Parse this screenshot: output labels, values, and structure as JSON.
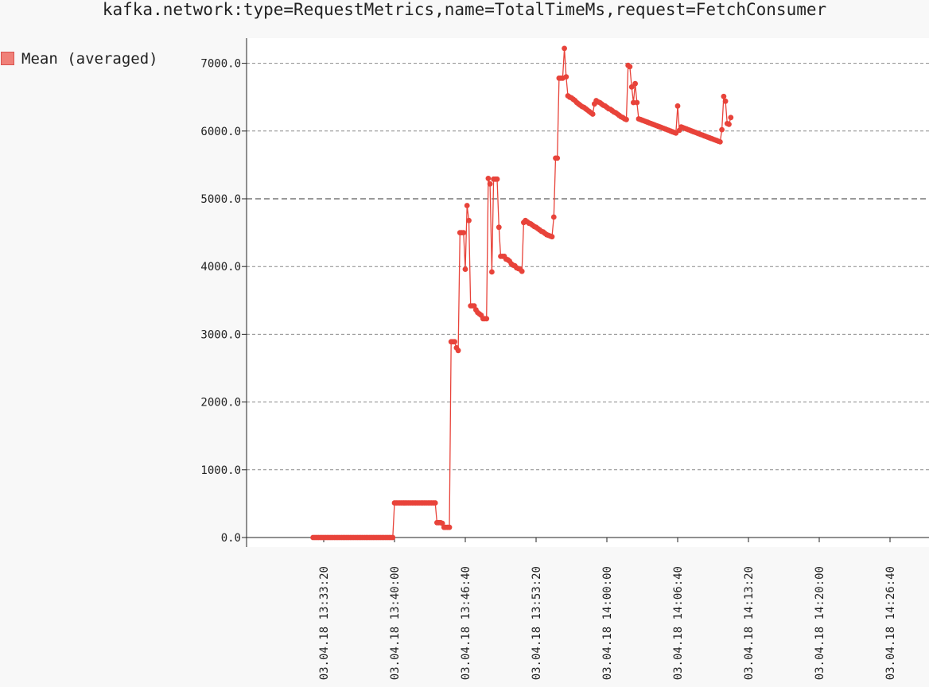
{
  "chart_data": {
    "type": "line",
    "title": "kafka.network:type=RequestMetrics,name=TotalTimeMs,request=FetchConsumer",
    "xlabel": "",
    "ylabel": "",
    "ylim": [
      0,
      7000
    ],
    "yticks": [
      "0.0",
      "1000.0",
      "2000.0",
      "3000.0",
      "4000.0",
      "5000.0",
      "6000.0",
      "7000.0"
    ],
    "xticks": [
      "03.04.18 13:33:20",
      "03.04.18 13:40:00",
      "03.04.18 13:46:40",
      "03.04.18 13:53:20",
      "03.04.18 14:00:00",
      "03.04.18 14:06:40",
      "03.04.18 14:13:20",
      "03.04.18 14:20:00",
      "03.04.18 14:26:40"
    ],
    "grid": true,
    "legend_position": "top-left",
    "series": [
      {
        "name": "Mean (averaged)",
        "color": "#e8433a",
        "points": [
          [
            "13:32:20",
            0
          ],
          [
            "13:32:30",
            0
          ],
          [
            "13:32:40",
            0
          ],
          [
            "13:32:50",
            0
          ],
          [
            "13:33:00",
            0
          ],
          [
            "13:33:10",
            0
          ],
          [
            "13:33:20",
            0
          ],
          [
            "13:33:30",
            0
          ],
          [
            "13:33:40",
            0
          ],
          [
            "13:33:50",
            0
          ],
          [
            "13:34:00",
            0
          ],
          [
            "13:34:10",
            0
          ],
          [
            "13:34:20",
            0
          ],
          [
            "13:34:30",
            0
          ],
          [
            "13:34:40",
            0
          ],
          [
            "13:34:50",
            0
          ],
          [
            "13:35:00",
            0
          ],
          [
            "13:35:10",
            0
          ],
          [
            "13:35:20",
            0
          ],
          [
            "13:35:30",
            0
          ],
          [
            "13:35:40",
            0
          ],
          [
            "13:35:50",
            0
          ],
          [
            "13:36:00",
            0
          ],
          [
            "13:36:10",
            0
          ],
          [
            "13:36:20",
            0
          ],
          [
            "13:36:30",
            0
          ],
          [
            "13:36:40",
            0
          ],
          [
            "13:36:50",
            0
          ],
          [
            "13:37:00",
            0
          ],
          [
            "13:37:10",
            0
          ],
          [
            "13:37:20",
            0
          ],
          [
            "13:37:30",
            0
          ],
          [
            "13:37:40",
            0
          ],
          [
            "13:37:50",
            0
          ],
          [
            "13:38:00",
            0
          ],
          [
            "13:38:10",
            0
          ],
          [
            "13:38:20",
            0
          ],
          [
            "13:38:30",
            0
          ],
          [
            "13:38:40",
            0
          ],
          [
            "13:38:50",
            0
          ],
          [
            "13:39:00",
            0
          ],
          [
            "13:39:10",
            0
          ],
          [
            "13:39:20",
            0
          ],
          [
            "13:39:30",
            0
          ],
          [
            "13:39:40",
            0
          ],
          [
            "13:39:50",
            0
          ],
          [
            "13:40:00",
            510
          ],
          [
            "13:40:10",
            510
          ],
          [
            "13:40:20",
            510
          ],
          [
            "13:40:30",
            510
          ],
          [
            "13:40:40",
            510
          ],
          [
            "13:40:50",
            510
          ],
          [
            "13:41:00",
            510
          ],
          [
            "13:41:10",
            510
          ],
          [
            "13:41:20",
            510
          ],
          [
            "13:41:30",
            510
          ],
          [
            "13:41:40",
            510
          ],
          [
            "13:41:50",
            510
          ],
          [
            "13:42:00",
            510
          ],
          [
            "13:42:10",
            510
          ],
          [
            "13:42:20",
            510
          ],
          [
            "13:42:30",
            510
          ],
          [
            "13:42:40",
            510
          ],
          [
            "13:42:50",
            510
          ],
          [
            "13:43:00",
            510
          ],
          [
            "13:43:10",
            510
          ],
          [
            "13:43:20",
            510
          ],
          [
            "13:43:30",
            510
          ],
          [
            "13:43:40",
            510
          ],
          [
            "13:43:50",
            510
          ],
          [
            "13:44:00",
            220
          ],
          [
            "13:44:10",
            220
          ],
          [
            "13:44:20",
            220
          ],
          [
            "13:44:30",
            210
          ],
          [
            "13:44:40",
            150
          ],
          [
            "13:44:50",
            150
          ],
          [
            "13:45:00",
            150
          ],
          [
            "13:45:10",
            150
          ],
          [
            "13:45:20",
            2890
          ],
          [
            "13:45:30",
            2890
          ],
          [
            "13:45:40",
            2890
          ],
          [
            "13:45:50",
            2800
          ],
          [
            "13:46:00",
            2760
          ],
          [
            "13:46:10",
            4500
          ],
          [
            "13:46:20",
            4500
          ],
          [
            "13:46:30",
            4500
          ],
          [
            "13:46:40",
            3960
          ],
          [
            "13:46:50",
            4900
          ],
          [
            "13:47:00",
            4680
          ],
          [
            "13:47:10",
            3420
          ],
          [
            "13:47:20",
            3420
          ],
          [
            "13:47:30",
            3420
          ],
          [
            "13:47:40",
            3360
          ],
          [
            "13:47:50",
            3320
          ],
          [
            "13:48:00",
            3300
          ],
          [
            "13:48:10",
            3280
          ],
          [
            "13:48:20",
            3230
          ],
          [
            "13:48:30",
            3230
          ],
          [
            "13:48:40",
            3230
          ],
          [
            "13:48:50",
            5300
          ],
          [
            "13:49:00",
            5220
          ],
          [
            "13:49:10",
            3920
          ],
          [
            "13:49:20",
            5290
          ],
          [
            "13:49:30",
            5290
          ],
          [
            "13:49:40",
            5290
          ],
          [
            "13:49:50",
            4580
          ],
          [
            "13:50:00",
            4150
          ],
          [
            "13:50:10",
            4150
          ],
          [
            "13:50:20",
            4150
          ],
          [
            "13:50:30",
            4110
          ],
          [
            "13:50:40",
            4100
          ],
          [
            "13:50:50",
            4080
          ],
          [
            "13:51:00",
            4040
          ],
          [
            "13:51:10",
            4020
          ],
          [
            "13:51:20",
            4010
          ],
          [
            "13:51:30",
            3980
          ],
          [
            "13:51:40",
            3970
          ],
          [
            "13:51:50",
            3960
          ],
          [
            "13:52:00",
            3930
          ],
          [
            "13:52:10",
            4650
          ],
          [
            "13:52:20",
            4680
          ],
          [
            "13:52:30",
            4660
          ],
          [
            "13:52:40",
            4640
          ],
          [
            "13:52:50",
            4630
          ],
          [
            "13:53:00",
            4610
          ],
          [
            "13:53:10",
            4590
          ],
          [
            "13:53:20",
            4580
          ],
          [
            "13:53:30",
            4560
          ],
          [
            "13:53:40",
            4540
          ],
          [
            "13:53:50",
            4520
          ],
          [
            "13:54:00",
            4510
          ],
          [
            "13:54:10",
            4490
          ],
          [
            "13:54:20",
            4470
          ],
          [
            "13:54:30",
            4460
          ],
          [
            "13:54:40",
            4450
          ],
          [
            "13:54:50",
            4440
          ],
          [
            "13:55:00",
            4730
          ],
          [
            "13:55:10",
            5600
          ],
          [
            "13:55:20",
            5600
          ],
          [
            "13:55:30",
            6780
          ],
          [
            "13:55:40",
            6780
          ],
          [
            "13:55:50",
            6780
          ],
          [
            "13:56:00",
            7220
          ],
          [
            "13:56:10",
            6800
          ],
          [
            "13:56:20",
            6520
          ],
          [
            "13:56:30",
            6500
          ],
          [
            "13:56:40",
            6490
          ],
          [
            "13:56:50",
            6470
          ],
          [
            "13:57:00",
            6450
          ],
          [
            "13:57:10",
            6420
          ],
          [
            "13:57:20",
            6400
          ],
          [
            "13:57:30",
            6380
          ],
          [
            "13:57:40",
            6360
          ],
          [
            "13:57:50",
            6350
          ],
          [
            "13:58:00",
            6330
          ],
          [
            "13:58:10",
            6310
          ],
          [
            "13:58:20",
            6290
          ],
          [
            "13:58:30",
            6270
          ],
          [
            "13:58:40",
            6250
          ],
          [
            "13:58:50",
            6400
          ],
          [
            "13:59:00",
            6450
          ],
          [
            "13:59:10",
            6430
          ],
          [
            "13:59:20",
            6420
          ],
          [
            "13:59:30",
            6400
          ],
          [
            "13:59:40",
            6380
          ],
          [
            "13:59:50",
            6370
          ],
          [
            "14:00:00",
            6350
          ],
          [
            "14:00:10",
            6330
          ],
          [
            "14:00:20",
            6320
          ],
          [
            "14:00:30",
            6300
          ],
          [
            "14:00:40",
            6280
          ],
          [
            "14:00:50",
            6270
          ],
          [
            "14:01:00",
            6250
          ],
          [
            "14:01:10",
            6230
          ],
          [
            "14:01:20",
            6210
          ],
          [
            "14:01:30",
            6200
          ],
          [
            "14:01:40",
            6180
          ],
          [
            "14:01:50",
            6170
          ],
          [
            "14:02:00",
            6970
          ],
          [
            "14:02:10",
            6950
          ],
          [
            "14:02:20",
            6650
          ],
          [
            "14:02:30",
            6420
          ],
          [
            "14:02:40",
            6700
          ],
          [
            "14:02:50",
            6420
          ],
          [
            "14:03:00",
            6180
          ],
          [
            "14:03:10",
            6170
          ],
          [
            "14:03:20",
            6160
          ],
          [
            "14:03:30",
            6150
          ],
          [
            "14:03:40",
            6140
          ],
          [
            "14:03:50",
            6130
          ],
          [
            "14:04:00",
            6120
          ],
          [
            "14:04:10",
            6110
          ],
          [
            "14:04:20",
            6100
          ],
          [
            "14:04:30",
            6090
          ],
          [
            "14:04:40",
            6080
          ],
          [
            "14:04:50",
            6070
          ],
          [
            "14:05:00",
            6060
          ],
          [
            "14:05:10",
            6050
          ],
          [
            "14:05:20",
            6040
          ],
          [
            "14:05:30",
            6030
          ],
          [
            "14:05:40",
            6020
          ],
          [
            "14:05:50",
            6010
          ],
          [
            "14:06:00",
            6000
          ],
          [
            "14:06:10",
            5990
          ],
          [
            "14:06:20",
            5980
          ],
          [
            "14:06:30",
            5970
          ],
          [
            "14:06:40",
            6370
          ],
          [
            "14:06:50",
            6010
          ],
          [
            "14:07:00",
            6060
          ],
          [
            "14:07:10",
            6050
          ],
          [
            "14:07:20",
            6040
          ],
          [
            "14:07:30",
            6030
          ],
          [
            "14:07:40",
            6020
          ],
          [
            "14:07:50",
            6010
          ],
          [
            "14:08:00",
            6000
          ],
          [
            "14:08:10",
            5990
          ],
          [
            "14:08:20",
            5980
          ],
          [
            "14:08:30",
            5970
          ],
          [
            "14:08:40",
            5960
          ],
          [
            "14:08:50",
            5950
          ],
          [
            "14:09:00",
            5940
          ],
          [
            "14:09:10",
            5930
          ],
          [
            "14:09:20",
            5920
          ],
          [
            "14:09:30",
            5910
          ],
          [
            "14:09:40",
            5900
          ],
          [
            "14:09:50",
            5890
          ],
          [
            "14:10:00",
            5880
          ],
          [
            "14:10:10",
            5870
          ],
          [
            "14:10:20",
            5860
          ],
          [
            "14:10:30",
            5850
          ],
          [
            "14:10:40",
            5840
          ],
          [
            "14:10:50",
            6020
          ],
          [
            "14:11:00",
            6510
          ],
          [
            "14:11:10",
            6440
          ],
          [
            "14:11:20",
            6110
          ],
          [
            "14:11:30",
            6100
          ],
          [
            "14:11:40",
            6200
          ]
        ]
      }
    ]
  }
}
